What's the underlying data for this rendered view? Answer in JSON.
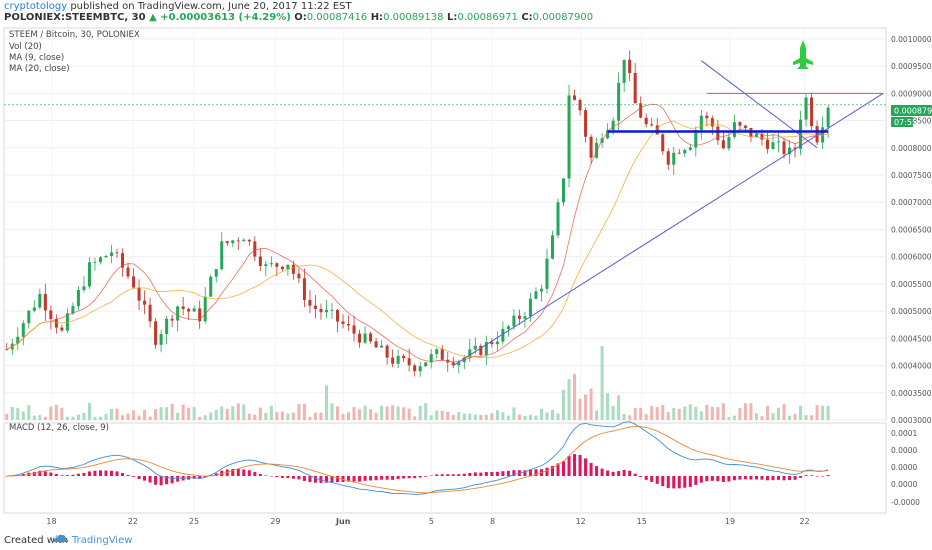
{
  "header": {
    "author": "cryptotology",
    "published_text": "published on TradingView.com, June 20, 2017 11:22 EST",
    "symbol_line_prefix": "POLONIEX:STEEMBTC, 30",
    "change_arrow": "▲",
    "change": "+0.00003613 (+4.29%)",
    "o_label": "O:",
    "o_value": "0.00087416",
    "h_label": "H:",
    "h_value": "0.00089138",
    "l_label": "L:",
    "l_value": "0.00086971",
    "c_label": "C:",
    "c_value": "0.00087900"
  },
  "legend": {
    "title": "STEEM / Bitcoin, 30, POLONIEX",
    "vol": "Vol (20)",
    "ma9": "MA (9, close)",
    "ma20": "MA (20, close)"
  },
  "macd_label": "MACD (12, 26, close, 9)",
  "price_tag": "0.00087900",
  "price_tag_time": "07:55",
  "footer": {
    "created_with": "Created with",
    "brand": "TradingView"
  },
  "colors": {
    "up": "#26a65b",
    "down": "#c0392b",
    "trendline": "#5a5ad6",
    "support": "#0a1ccf",
    "resistance": "#d9534f",
    "macd_line": "#3f8fd6",
    "signal_line": "#e38b3c",
    "hist": "#e0155c",
    "rocket": "#2ecc40"
  },
  "chart_data": {
    "type": "candlestick",
    "title": "STEEM / Bitcoin, 30, POLONIEX",
    "x_ticks": [
      "18",
      "22",
      "25",
      "29",
      "Jun",
      "5",
      "8",
      "12",
      "15",
      "19",
      "22"
    ],
    "price_ticks": [
      "0.00100000",
      "0.00095000",
      "0.00090000",
      "0.00085000",
      "0.00080000",
      "0.00075000",
      "0.00070000",
      "0.00065000",
      "0.00060000",
      "0.00055000",
      "0.00050000",
      "0.00045000",
      "0.00040000",
      "0.00035000",
      "0.00030000"
    ],
    "price_range": [
      0.0003,
      0.00102
    ],
    "macd_ticks": [
      "0.0001",
      "0.0000",
      "0.0000",
      "0.0000",
      "-0.0000"
    ],
    "price_path": [
      [
        0,
        0.00043
      ],
      [
        6,
        0.00053
      ],
      [
        10,
        0.00046
      ],
      [
        15,
        0.00058
      ],
      [
        19,
        0.00061
      ],
      [
        23,
        0.00055
      ],
      [
        27,
        0.00045
      ],
      [
        31,
        0.00051
      ],
      [
        35,
        0.00049
      ],
      [
        39,
        0.00062
      ],
      [
        43,
        0.00064
      ],
      [
        47,
        0.00058
      ],
      [
        51,
        0.00059
      ],
      [
        55,
        0.00051
      ],
      [
        59,
        0.00049
      ],
      [
        63,
        0.00046
      ],
      [
        66,
        0.00044
      ],
      [
        70,
        0.00041
      ],
      [
        74,
        0.0004
      ],
      [
        78,
        0.00042
      ],
      [
        82,
        0.00041
      ],
      [
        86,
        0.00043
      ],
      [
        90,
        0.00046
      ],
      [
        94,
        0.0005
      ],
      [
        97,
        0.00055
      ],
      [
        99,
        0.00063
      ],
      [
        101,
        0.00075
      ],
      [
        102,
        0.0009
      ],
      [
        104,
        0.00087
      ],
      [
        106,
        0.00078
      ],
      [
        108,
        0.00083
      ],
      [
        110,
        0.00086
      ],
      [
        112,
        0.00097
      ],
      [
        114,
        0.00088
      ],
      [
        116,
        0.00084
      ],
      [
        118,
        0.00082
      ],
      [
        120,
        0.00078
      ],
      [
        122,
        0.0008
      ],
      [
        124,
        0.00081
      ],
      [
        126,
        0.00086
      ],
      [
        128,
        0.00084
      ],
      [
        130,
        0.0008
      ],
      [
        132,
        0.00084
      ],
      [
        134,
        0.00083
      ],
      [
        136,
        0.00082
      ],
      [
        138,
        0.00081
      ],
      [
        140,
        0.0008
      ],
      [
        142,
        0.00079
      ],
      [
        143,
        0.0008
      ],
      [
        144,
        0.00086
      ],
      [
        145,
        0.00089
      ],
      [
        146,
        0.00085
      ],
      [
        147,
        0.00082
      ],
      [
        148,
        0.00085
      ],
      [
        149,
        0.00088
      ]
    ],
    "lines": {
      "support": {
        "from": [
          109,
          0.00083
        ],
        "to": [
          149,
          0.00083
        ]
      },
      "resistance": {
        "from": [
          127,
          0.0009
        ],
        "to": [
          159,
          0.0009
        ]
      },
      "upper_trend": {
        "from": [
          126,
          0.00096
        ],
        "to": [
          147,
          0.0008
        ]
      },
      "lower_trend": {
        "from": [
          81,
          0.0004
        ],
        "to": [
          159,
          0.0009
        ]
      }
    }
  }
}
